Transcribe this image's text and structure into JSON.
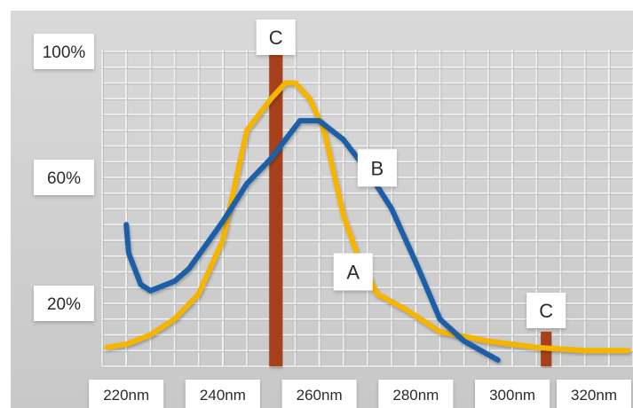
{
  "chart_data": {
    "type": "line",
    "x_ticks": [
      "220nm",
      "240nm",
      "260nm",
      "280nm",
      "300nm",
      "320nm"
    ],
    "y_ticks": [
      "100%",
      "60%",
      "20%"
    ],
    "xlim": [
      215,
      325
    ],
    "ylim": [
      0,
      100
    ],
    "grid": true,
    "legend": "none",
    "series": [
      {
        "label": "A",
        "color": "#f5b400",
        "points": [
          {
            "x": 216,
            "y": 6
          },
          {
            "x": 220,
            "y": 7
          },
          {
            "x": 225,
            "y": 10
          },
          {
            "x": 230,
            "y": 15
          },
          {
            "x": 235,
            "y": 23
          },
          {
            "x": 240,
            "y": 40
          },
          {
            "x": 245,
            "y": 75
          },
          {
            "x": 250,
            "y": 85
          },
          {
            "x": 253,
            "y": 90
          },
          {
            "x": 255,
            "y": 90
          },
          {
            "x": 258,
            "y": 85
          },
          {
            "x": 261,
            "y": 75
          },
          {
            "x": 265,
            "y": 48
          },
          {
            "x": 268,
            "y": 35
          },
          {
            "x": 272,
            "y": 23
          },
          {
            "x": 278,
            "y": 18
          },
          {
            "x": 285,
            "y": 11
          },
          {
            "x": 295,
            "y": 8
          },
          {
            "x": 305,
            "y": 6
          },
          {
            "x": 315,
            "y": 5
          },
          {
            "x": 324,
            "y": 5
          }
        ],
        "label_at": {
          "x": 267,
          "y": 30
        }
      },
      {
        "label": "B",
        "color": "#1a5ea8",
        "points": [
          {
            "x": 220,
            "y": 45
          },
          {
            "x": 220.5,
            "y": 36
          },
          {
            "x": 223,
            "y": 26
          },
          {
            "x": 225,
            "y": 24
          },
          {
            "x": 230,
            "y": 27
          },
          {
            "x": 233,
            "y": 31
          },
          {
            "x": 240,
            "y": 46
          },
          {
            "x": 245,
            "y": 58
          },
          {
            "x": 250,
            "y": 66
          },
          {
            "x": 252,
            "y": 70
          },
          {
            "x": 256,
            "y": 78
          },
          {
            "x": 260,
            "y": 78
          },
          {
            "x": 265,
            "y": 72
          },
          {
            "x": 270,
            "y": 62
          },
          {
            "x": 275,
            "y": 50
          },
          {
            "x": 280,
            "y": 33
          },
          {
            "x": 285,
            "y": 15
          },
          {
            "x": 290,
            "y": 8
          },
          {
            "x": 297,
            "y": 2
          }
        ],
        "label_at": {
          "x": 272,
          "y": 63
        }
      }
    ],
    "peaks": [
      {
        "label": "C",
        "x": 251,
        "y": 100,
        "color": "#a8401c"
      },
      {
        "label": "C",
        "x": 307,
        "y": 11,
        "color": "#a8401c"
      }
    ]
  }
}
